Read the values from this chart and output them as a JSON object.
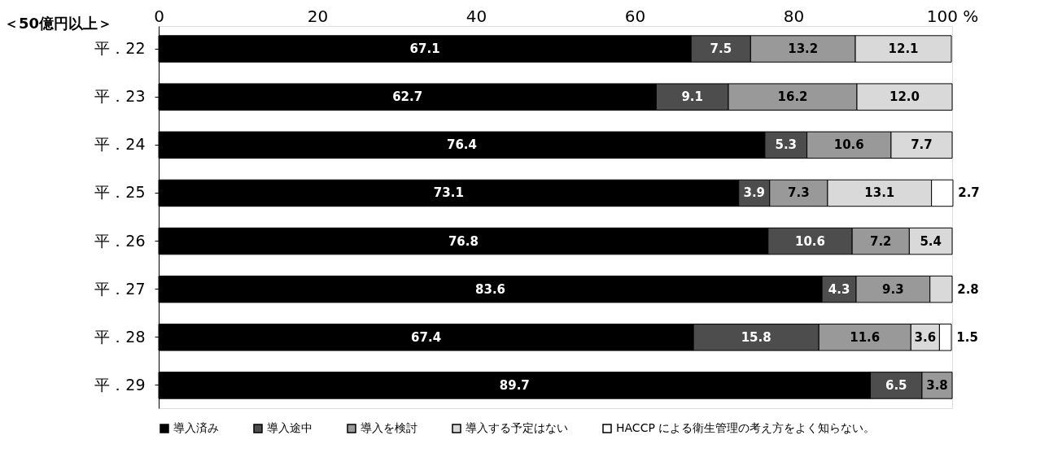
{
  "chart_data": {
    "type": "bar",
    "orientation": "horizontal",
    "stacked": true,
    "legend": "bottom",
    "grid": false,
    "categories": [
      "平．22",
      "平．23",
      "平．24",
      "平．25",
      "平．26",
      "平．27",
      "平．28",
      "平．29"
    ],
    "xlim": [
      0,
      100
    ],
    "xticks": [
      0,
      20,
      40,
      60,
      80,
      {
        "value": 100,
        "label": "100 %"
      }
    ],
    "annotations": [
      "＜50億円以上＞"
    ],
    "series": [
      {
        "name": "導入済み",
        "color": "#000000",
        "values": [
          67.1,
          62.7,
          76.4,
          73.1,
          76.8,
          83.6,
          67.4,
          89.7
        ],
        "value_labels": [
          "67.1",
          "62.7",
          "76.4",
          "73.1",
          "76.8",
          "83.6",
          "67.4",
          "89.7"
        ]
      },
      {
        "name": "導入途中",
        "color": "#4d4d4d",
        "values": [
          7.5,
          9.1,
          5.3,
          3.9,
          10.6,
          4.3,
          15.8,
          6.5
        ],
        "value_labels": [
          "7.5",
          "9.1",
          "5.3",
          "3.9",
          "10.6",
          "4.3",
          "15.8",
          "6.5"
        ]
      },
      {
        "name": "導入を検討",
        "color": "#999999",
        "values": [
          13.2,
          16.2,
          10.6,
          7.3,
          7.2,
          9.3,
          11.6,
          3.8
        ],
        "value_labels": [
          "13.2",
          "16.2",
          "10.6",
          "7.3",
          "7.2",
          "9.3",
          "11.6",
          "3.8"
        ]
      },
      {
        "name": "導入する予定はない",
        "color": "#d9d9d9",
        "values": [
          12.1,
          12.0,
          7.7,
          13.1,
          5.4,
          2.8,
          3.6,
          null
        ],
        "value_labels": [
          "12.1",
          "12.0",
          "7.7",
          "13.1",
          "5.4",
          "2.8",
          "3.6",
          null
        ]
      },
      {
        "name": "HACCP による衛生管理の考え方をよく知らない。",
        "color": "#ffffff",
        "values": [
          null,
          null,
          null,
          2.7,
          null,
          null,
          1.5,
          null
        ],
        "value_labels": [
          null,
          null,
          null,
          "2.7",
          null,
          null,
          "1.5",
          null
        ]
      }
    ]
  }
}
